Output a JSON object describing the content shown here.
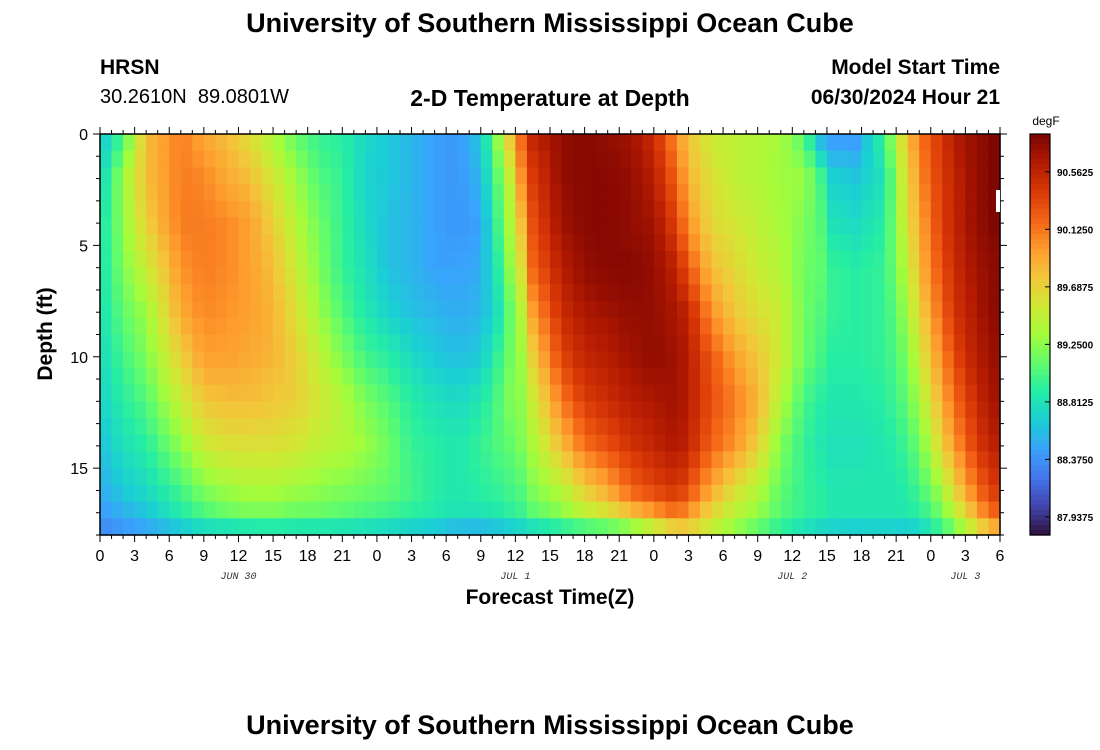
{
  "page": {
    "title_top": "University of Southern Mississippi Ocean Cube",
    "title_bottom": "University of Southern Mississippi Ocean Cube",
    "station": "HRSN",
    "coords": "30.2610N  89.0801W",
    "plot_title": "2-D Temperature at Depth",
    "model_label": "Model Start Time",
    "model_time": "06/30/2024 Hour 21"
  },
  "chart_data": {
    "type": "heatmap",
    "title": "2-D Temperature at Depth",
    "xlabel": "Forecast Time(Z)",
    "ylabel": "Depth (ft)",
    "units": "degF",
    "x_range_hours": [
      0,
      78
    ],
    "x_tick_labels": [
      "0",
      "3",
      "6",
      "9",
      "12",
      "15",
      "18",
      "21",
      "0",
      "3",
      "6",
      "9",
      "12",
      "15",
      "18",
      "21",
      "0",
      "3",
      "6",
      "9",
      "12",
      "15",
      "18",
      "21",
      "0",
      "3",
      "6"
    ],
    "date_labels": [
      {
        "label": "JUN 30",
        "hour": 12
      },
      {
        "label": "JUL 1",
        "hour": 36
      },
      {
        "label": "JUL 2",
        "hour": 60
      },
      {
        "label": "JUL 3",
        "hour": 75
      }
    ],
    "y_range_ft": [
      0,
      18
    ],
    "y_tick_labels": [
      "0",
      "5",
      "10",
      "15"
    ],
    "y_tick_values": [
      0,
      5,
      10,
      15
    ],
    "colorbar_ticks": [
      "90.5625",
      "90.1250",
      "89.6875",
      "89.2500",
      "88.8125",
      "88.3750",
      "87.9375"
    ],
    "colorbar_tick_values": [
      90.5625,
      90.125,
      89.6875,
      89.25,
      88.8125,
      88.375,
      87.9375
    ],
    "value_range": [
      87.8,
      90.85
    ],
    "grid": false,
    "field_samples": {
      "time_hours": [
        0,
        2,
        4,
        7,
        9,
        11,
        13,
        15,
        17,
        19,
        21,
        23,
        25,
        27,
        29,
        31,
        33,
        34.5,
        35.5,
        36.5,
        37.5,
        40,
        42,
        44,
        46,
        48,
        50,
        51,
        53,
        55,
        57,
        59,
        61,
        62.5,
        63.5,
        65.5,
        68,
        69,
        70,
        71,
        72,
        73,
        74,
        75,
        76,
        77,
        78
      ],
      "depth_ft": [
        0,
        2,
        4,
        6,
        8,
        10,
        12,
        14,
        16,
        17.2,
        18
      ],
      "temperature_degF": [
        [
          88.6,
          88.7,
          88.8,
          88.8,
          88.8,
          88.75,
          88.7,
          88.6,
          88.5,
          88.4,
          88.3
        ],
        [
          89.0,
          89.3,
          89.25,
          89.2,
          89.1,
          89.0,
          88.9,
          88.8,
          88.65,
          88.5,
          88.35
        ],
        [
          89.8,
          89.8,
          89.7,
          89.5,
          89.3,
          89.2,
          89.05,
          88.9,
          88.75,
          88.6,
          88.4
        ],
        [
          90.1,
          90.1,
          90.1,
          90.0,
          89.9,
          89.7,
          89.5,
          89.25,
          89.0,
          88.85,
          88.5
        ],
        [
          89.9,
          90.05,
          90.1,
          90.1,
          90.05,
          89.95,
          89.75,
          89.5,
          89.2,
          89.0,
          88.6
        ],
        [
          89.8,
          89.9,
          90.05,
          90.05,
          90.0,
          89.95,
          89.8,
          89.6,
          89.3,
          89.1,
          88.6
        ],
        [
          89.6,
          89.8,
          89.95,
          89.95,
          89.95,
          89.9,
          89.8,
          89.6,
          89.35,
          89.15,
          88.65
        ],
        [
          89.35,
          89.55,
          89.7,
          89.8,
          89.85,
          89.85,
          89.75,
          89.6,
          89.35,
          89.15,
          88.65
        ],
        [
          89.1,
          89.3,
          89.4,
          89.5,
          89.6,
          89.7,
          89.7,
          89.55,
          89.3,
          89.1,
          88.65
        ],
        [
          88.95,
          89.05,
          89.15,
          89.2,
          89.3,
          89.45,
          89.55,
          89.45,
          89.25,
          89.1,
          88.65
        ],
        [
          88.9,
          88.95,
          88.95,
          88.95,
          89.05,
          89.2,
          89.4,
          89.4,
          89.2,
          89.05,
          88.65
        ],
        [
          88.75,
          88.7,
          88.75,
          88.8,
          88.85,
          89.0,
          89.2,
          89.3,
          89.15,
          89.0,
          88.65
        ],
        [
          88.65,
          88.65,
          88.6,
          88.6,
          88.7,
          88.9,
          89.05,
          89.15,
          89.1,
          88.95,
          88.6
        ],
        [
          88.55,
          88.55,
          88.55,
          88.55,
          88.6,
          88.75,
          88.9,
          88.95,
          89.0,
          88.9,
          88.55
        ],
        [
          88.45,
          88.45,
          88.45,
          88.45,
          88.55,
          88.65,
          88.8,
          88.9,
          88.9,
          88.85,
          88.5
        ],
        [
          88.4,
          88.4,
          88.4,
          88.45,
          88.5,
          88.6,
          88.75,
          88.85,
          88.85,
          88.8,
          88.4
        ],
        [
          88.65,
          88.55,
          88.45,
          88.5,
          88.55,
          88.65,
          88.85,
          88.95,
          88.9,
          88.8,
          88.4
        ],
        [
          89.3,
          89.1,
          89.0,
          88.9,
          88.8,
          88.95,
          89.05,
          89.05,
          88.95,
          88.85,
          88.45
        ],
        [
          89.75,
          89.45,
          89.35,
          89.25,
          89.1,
          89.15,
          89.2,
          89.1,
          89.0,
          88.9,
          88.5
        ],
        [
          90.2,
          90.0,
          89.8,
          89.6,
          89.4,
          89.3,
          89.25,
          89.2,
          89.05,
          88.95,
          88.55
        ],
        [
          90.55,
          90.4,
          90.3,
          90.2,
          89.95,
          89.7,
          89.5,
          89.35,
          89.2,
          89.05,
          88.6
        ],
        [
          90.75,
          90.75,
          90.7,
          90.6,
          90.5,
          90.35,
          90.1,
          89.8,
          89.4,
          89.2,
          88.7
        ],
        [
          90.8,
          90.8,
          90.8,
          90.75,
          90.65,
          90.55,
          90.4,
          90.15,
          89.7,
          89.4,
          88.75
        ],
        [
          90.75,
          90.8,
          90.8,
          90.8,
          90.7,
          90.6,
          90.5,
          90.3,
          89.9,
          89.5,
          88.8
        ],
        [
          90.7,
          90.75,
          90.75,
          90.8,
          90.75,
          90.7,
          90.6,
          90.45,
          90.2,
          89.7,
          88.9
        ],
        [
          90.5,
          90.6,
          90.7,
          90.75,
          90.75,
          90.75,
          90.65,
          90.55,
          90.35,
          89.9,
          89.2
        ],
        [
          90.0,
          90.2,
          90.35,
          90.55,
          90.65,
          90.7,
          90.7,
          90.65,
          90.45,
          90.1,
          89.45
        ],
        [
          89.75,
          89.85,
          90.0,
          90.25,
          90.55,
          90.6,
          90.6,
          90.55,
          90.3,
          89.95,
          89.55
        ],
        [
          89.5,
          89.6,
          89.65,
          89.8,
          90.0,
          90.25,
          90.3,
          90.2,
          89.9,
          89.6,
          89.4
        ],
        [
          89.45,
          89.45,
          89.55,
          89.65,
          89.75,
          89.95,
          90.1,
          90.0,
          89.6,
          89.4,
          89.2
        ],
        [
          89.4,
          89.4,
          89.45,
          89.5,
          89.6,
          89.75,
          89.85,
          89.7,
          89.4,
          89.25,
          89.0
        ],
        [
          89.35,
          89.3,
          89.35,
          89.4,
          89.5,
          89.5,
          89.4,
          89.2,
          89.1,
          89.05,
          88.85
        ],
        [
          89.05,
          89.3,
          89.2,
          89.15,
          89.15,
          89.15,
          89.0,
          88.95,
          88.95,
          88.95,
          88.7
        ],
        [
          88.5,
          89.0,
          89.05,
          89.1,
          89.05,
          89.0,
          88.9,
          88.85,
          88.9,
          88.9,
          88.6
        ],
        [
          88.4,
          88.7,
          88.8,
          88.95,
          88.95,
          88.9,
          88.85,
          88.8,
          88.85,
          88.85,
          88.6
        ],
        [
          88.4,
          88.65,
          88.75,
          88.9,
          88.9,
          88.9,
          88.85,
          88.8,
          88.85,
          88.85,
          88.55
        ],
        [
          89.0,
          88.8,
          88.9,
          88.95,
          88.95,
          88.95,
          88.9,
          88.85,
          88.85,
          88.85,
          88.6
        ],
        [
          89.4,
          89.3,
          89.25,
          89.2,
          89.1,
          89.05,
          89.0,
          88.9,
          88.85,
          88.85,
          88.55
        ],
        [
          89.8,
          89.65,
          89.6,
          89.45,
          89.35,
          89.2,
          89.1,
          89.0,
          88.9,
          88.85,
          88.55
        ],
        [
          90.1,
          90.0,
          89.9,
          89.8,
          89.65,
          89.5,
          89.35,
          89.15,
          89.0,
          88.9,
          88.6
        ],
        [
          90.3,
          90.25,
          90.15,
          90.1,
          89.95,
          89.8,
          89.6,
          89.4,
          89.15,
          89.0,
          88.75
        ],
        [
          90.45,
          90.4,
          90.4,
          90.3,
          90.2,
          90.05,
          89.9,
          89.7,
          89.35,
          89.15,
          88.9
        ],
        [
          90.6,
          90.55,
          90.55,
          90.5,
          90.45,
          90.3,
          90.15,
          89.95,
          89.65,
          89.35,
          89.05
        ],
        [
          90.7,
          90.65,
          90.65,
          90.6,
          90.55,
          90.5,
          90.35,
          90.2,
          89.9,
          89.6,
          89.25
        ],
        [
          90.75,
          90.75,
          90.75,
          90.7,
          90.65,
          90.6,
          90.5,
          90.4,
          90.15,
          89.85,
          89.45
        ],
        [
          90.8,
          90.8,
          90.8,
          90.75,
          90.75,
          90.7,
          90.65,
          90.55,
          90.35,
          90.1,
          89.6
        ],
        [
          90.85,
          90.85,
          90.85,
          90.8,
          90.8,
          90.75,
          90.7,
          90.6,
          90.45,
          90.2,
          89.7
        ]
      ]
    },
    "colormap": [
      "#30123b",
      "#4145ab",
      "#4675ed",
      "#39a2fc",
      "#1bcfd4",
      "#24eca6",
      "#61fc6c",
      "#a4fc3b",
      "#d1e834",
      "#f3c63a",
      "#fe9b2d",
      "#f36315",
      "#d93806",
      "#b11901",
      "#7a0402"
    ]
  }
}
